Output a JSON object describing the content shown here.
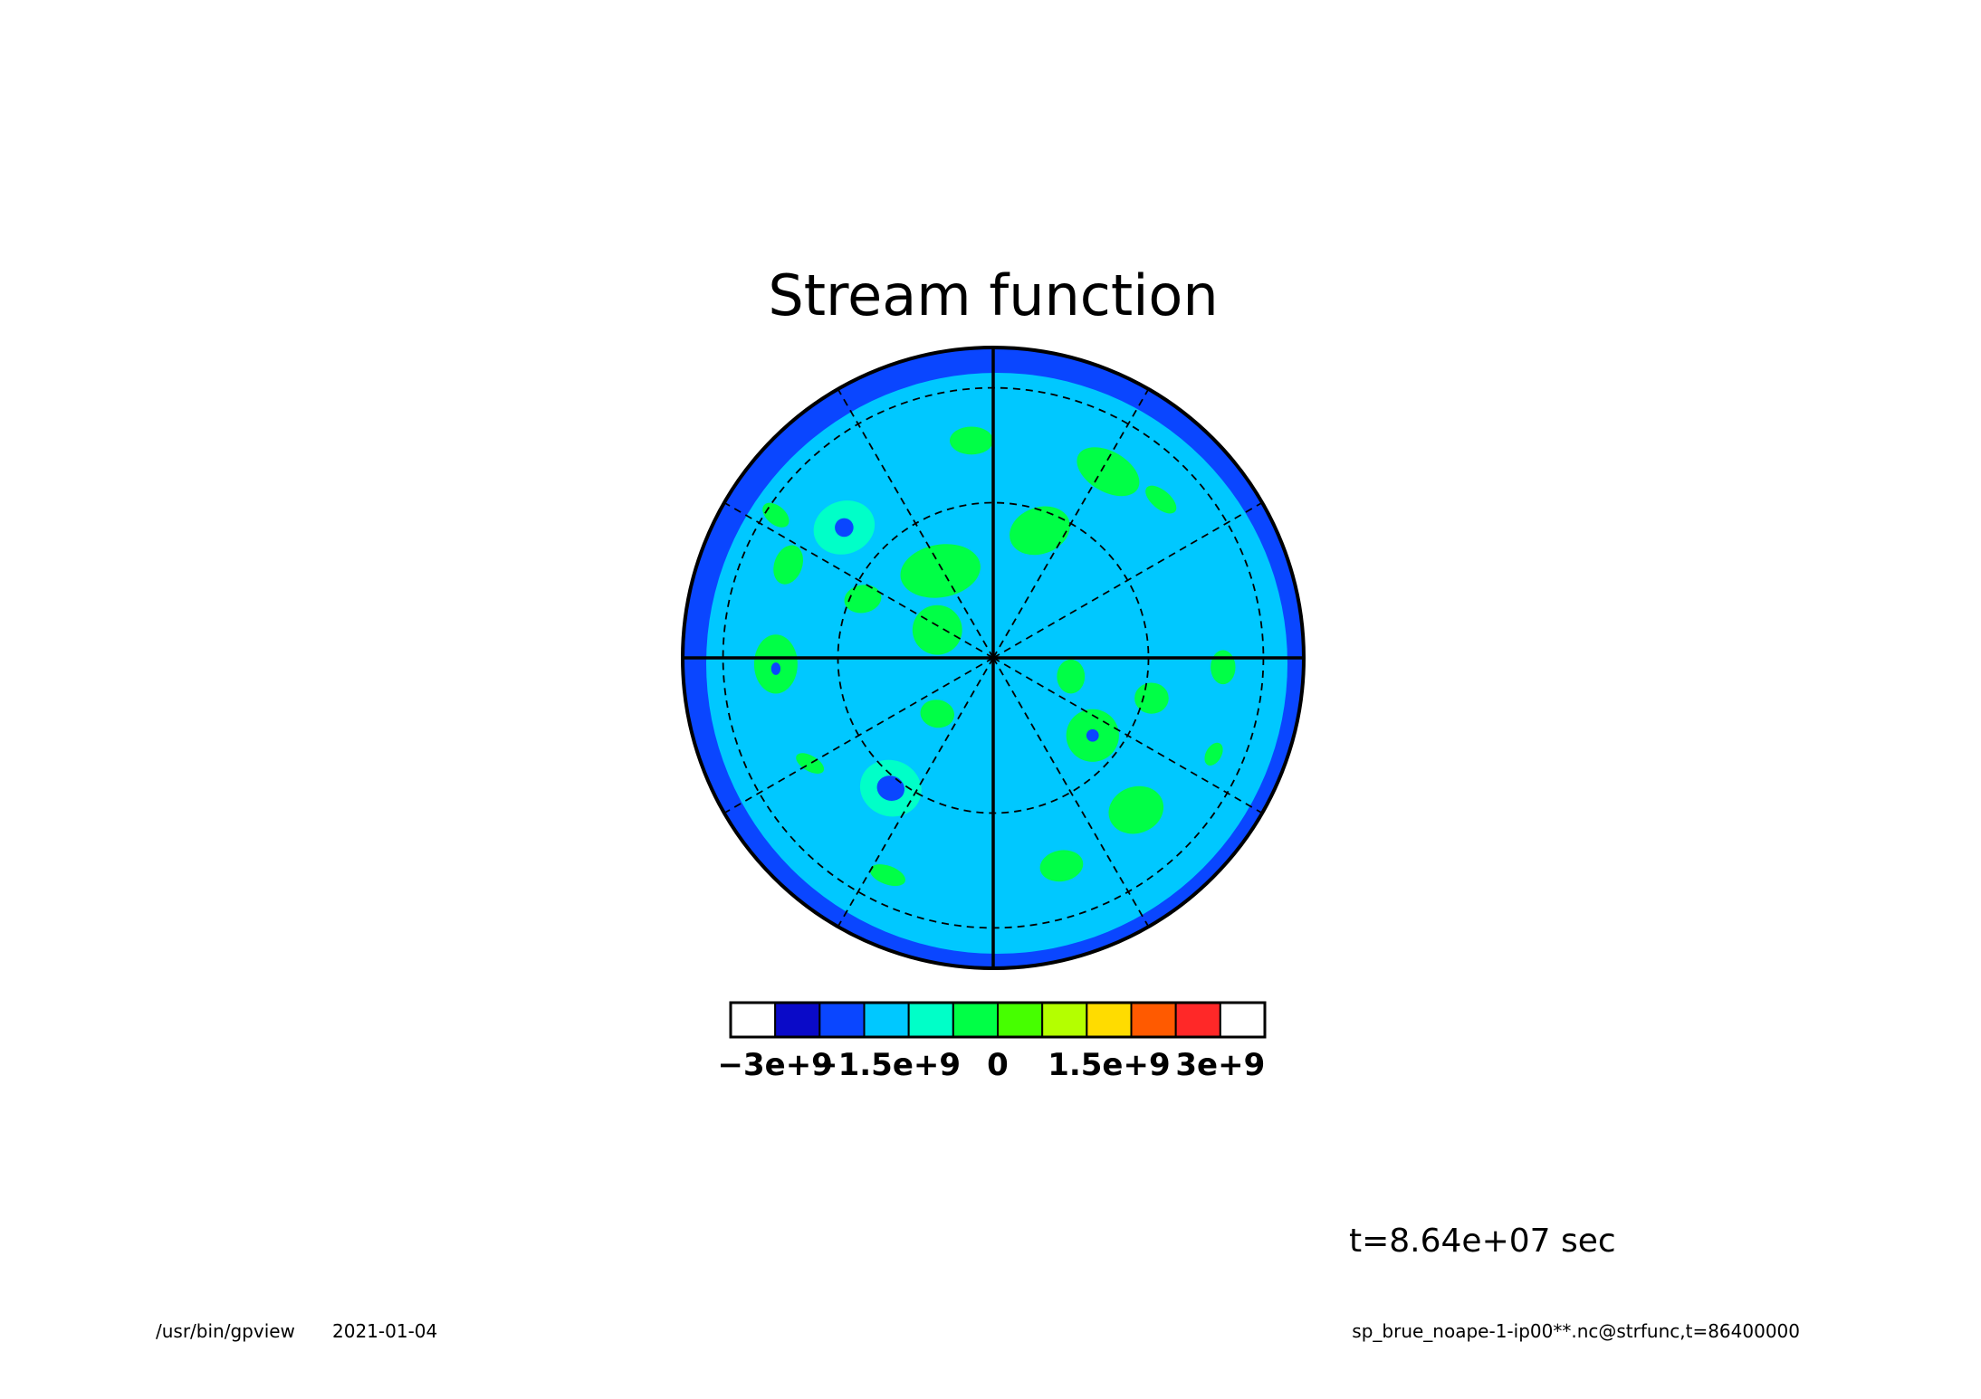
{
  "chart_data": {
    "type": "polar-contour",
    "title": "Stream function",
    "projection": "polar stereographic (pole view)",
    "grid": true,
    "colorbar": {
      "placement": "bottom",
      "levels": [
        -3000000000.0,
        -2500000000.0,
        -2000000000.0,
        -1500000000.0,
        -1000000000.0,
        -500000000.0,
        0,
        500000000.0,
        1000000000.0,
        1500000000.0,
        2000000000.0,
        2500000000.0,
        3000000000.0
      ],
      "colors": [
        "#ffffff",
        "#0a0ac8",
        "#0a46ff",
        "#00c8ff",
        "#00ffc8",
        "#00ff46",
        "#46ff00",
        "#b4ff00",
        "#ffdc00",
        "#ff5a00",
        "#ff2828",
        "#ffffff"
      ],
      "tick_labels": [
        "−3e+9",
        "−1.5e+9",
        "0",
        "1.5e+9",
        "3e+9"
      ],
      "tick_values": [
        -3000000000.0,
        -1500000000.0,
        0,
        1500000000.0,
        3000000000.0
      ]
    },
    "background_level_color": "#00c8ff",
    "rim_band_color": "#0a46ff",
    "anomalies": [
      {
        "u": -0.07,
        "v": -0.7,
        "rx": 0.07,
        "ry": 0.045,
        "rot": 0,
        "level": -1000000000.0
      },
      {
        "u": 0.37,
        "v": -0.6,
        "rx": 0.11,
        "ry": 0.065,
        "rot": 30,
        "level": -1000000000.0
      },
      {
        "u": 0.54,
        "v": -0.51,
        "rx": 0.06,
        "ry": 0.03,
        "rot": 40,
        "level": -1000000000.0
      },
      {
        "u": -0.48,
        "v": -0.42,
        "rx": 0.1,
        "ry": 0.085,
        "rot": -20,
        "level": -1500000000.0
      },
      {
        "u": -0.48,
        "v": -0.42,
        "rx": 0.03,
        "ry": 0.03,
        "rot": 0,
        "level": -2500000000.0
      },
      {
        "u": -0.66,
        "v": -0.3,
        "rx": 0.045,
        "ry": 0.065,
        "rot": 20,
        "level": -1000000000.0
      },
      {
        "u": -0.42,
        "v": -0.19,
        "rx": 0.06,
        "ry": 0.045,
        "rot": -10,
        "level": -1000000000.0
      },
      {
        "u": -0.17,
        "v": -0.28,
        "rx": 0.13,
        "ry": 0.085,
        "rot": -10,
        "level": -1000000000.0
      },
      {
        "u": 0.15,
        "v": -0.41,
        "rx": 0.1,
        "ry": 0.075,
        "rot": -20,
        "level": -1000000000.0
      },
      {
        "u": -0.18,
        "v": -0.09,
        "rx": 0.08,
        "ry": 0.08,
        "rot": 0,
        "level": -1000000000.0
      },
      {
        "u": -0.7,
        "v": -0.46,
        "rx": 0.05,
        "ry": 0.03,
        "rot": 40,
        "level": -1000000000.0
      },
      {
        "u": -0.7,
        "v": 0.02,
        "rx": 0.07,
        "ry": 0.095,
        "rot": 0,
        "level": -1000000000.0
      },
      {
        "u": -0.7,
        "v": 0.035,
        "rx": 0.015,
        "ry": 0.02,
        "rot": 0,
        "level": -2500000000.0
      },
      {
        "u": 0.25,
        "v": 0.06,
        "rx": 0.045,
        "ry": 0.055,
        "rot": 0,
        "level": -1000000000.0
      },
      {
        "u": 0.51,
        "v": 0.13,
        "rx": 0.055,
        "ry": 0.05,
        "rot": 0,
        "level": -1000000000.0
      },
      {
        "u": 0.74,
        "v": 0.03,
        "rx": 0.04,
        "ry": 0.055,
        "rot": 0,
        "level": -1000000000.0
      },
      {
        "u": -0.18,
        "v": 0.18,
        "rx": 0.055,
        "ry": 0.045,
        "rot": 10,
        "level": -1000000000.0
      },
      {
        "u": 0.32,
        "v": 0.25,
        "rx": 0.085,
        "ry": 0.085,
        "rot": 0,
        "level": -1000000000.0
      },
      {
        "u": 0.32,
        "v": 0.25,
        "rx": 0.02,
        "ry": 0.02,
        "rot": 0,
        "level": -2500000000.0
      },
      {
        "u": 0.71,
        "v": 0.31,
        "rx": 0.025,
        "ry": 0.04,
        "rot": 30,
        "level": -1000000000.0
      },
      {
        "u": -0.59,
        "v": 0.34,
        "rx": 0.05,
        "ry": 0.025,
        "rot": 30,
        "level": -1000000000.0
      },
      {
        "u": -0.33,
        "v": 0.42,
        "rx": 0.1,
        "ry": 0.09,
        "rot": 20,
        "level": -1500000000.0
      },
      {
        "u": -0.33,
        "v": 0.42,
        "rx": 0.045,
        "ry": 0.04,
        "rot": 20,
        "level": -2500000000.0
      },
      {
        "u": 0.46,
        "v": 0.49,
        "rx": 0.09,
        "ry": 0.075,
        "rot": -20,
        "level": -1000000000.0
      },
      {
        "u": -0.34,
        "v": 0.7,
        "rx": 0.06,
        "ry": 0.03,
        "rot": 20,
        "level": -1000000000.0
      },
      {
        "u": 0.22,
        "v": 0.67,
        "rx": 0.07,
        "ry": 0.05,
        "rot": -10,
        "level": -1000000000.0
      }
    ],
    "time_label": "t=8.64e+07 sec"
  },
  "footer": {
    "program": "/usr/bin/gpview",
    "date": "2021-01-04",
    "source": "sp_brue_noape-1-ip00**.nc@strfunc,t=86400000"
  }
}
